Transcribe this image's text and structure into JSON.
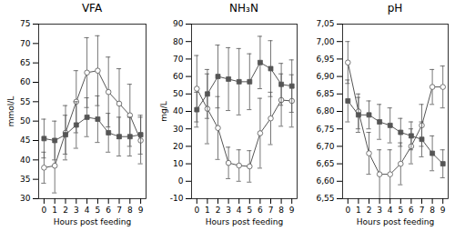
{
  "chart_data": [
    {
      "type": "line",
      "title": "VFA",
      "xlabel": "Hours post feeding",
      "ylabel": "mmol/L",
      "grid": false,
      "x": [
        0,
        1,
        2,
        3,
        4,
        5,
        6,
        7,
        8,
        9
      ],
      "xlim": [
        -0.5,
        9.5
      ],
      "xticks": [
        0,
        1,
        2,
        3,
        4,
        5,
        6,
        7,
        8,
        9
      ],
      "ylim": [
        30,
        75
      ],
      "yticks": [
        30,
        35,
        40,
        45,
        50,
        55,
        60,
        65,
        70,
        75
      ],
      "series": [
        {
          "color": "#555555",
          "marker": "circle",
          "line_style": "solid",
          "values": [
            38.0,
            38.5,
            47.0,
            55.0,
            62.5,
            63.0,
            57.5,
            54.5,
            51.5,
            45.0
          ],
          "errors": [
            4.0,
            7.0,
            7.0,
            8.0,
            9.0,
            9.0,
            9.0,
            9.0,
            8.0,
            6.0
          ]
        },
        {
          "color": "#555555",
          "marker": "square",
          "line_style": "solid",
          "values": [
            45.5,
            45.0,
            46.5,
            49.0,
            51.0,
            50.5,
            47.0,
            46.0,
            46.0,
            46.5
          ],
          "errors": [
            5.0,
            5.0,
            5.0,
            6.0,
            5.0,
            6.0,
            5.0,
            5.0,
            5.0,
            5.0
          ]
        }
      ]
    },
    {
      "type": "line",
      "title": "NH₃N",
      "xlabel": "Hours post feeding",
      "ylabel": "mg/L",
      "grid": false,
      "x": [
        0,
        1,
        2,
        3,
        4,
        5,
        6,
        7,
        8,
        9
      ],
      "xlim": [
        -0.5,
        9.5
      ],
      "xticks": [
        0,
        1,
        2,
        3,
        4,
        5,
        6,
        7,
        8,
        9
      ],
      "ylim": [
        -10,
        90
      ],
      "yticks": [
        -10,
        0,
        10,
        20,
        30,
        40,
        50,
        60,
        70,
        80,
        90
      ],
      "series": [
        {
          "color": "#555555",
          "marker": "circle",
          "line_style": "solid",
          "values": [
            53.0,
            41.5,
            30.5,
            10.5,
            9.0,
            8.5,
            27.5,
            36.0,
            46.5,
            46.0
          ],
          "errors": [
            19.0,
            20.0,
            18.0,
            9.0,
            9.0,
            9.0,
            20.0,
            15.0,
            15.0,
            15.0
          ]
        },
        {
          "color": "#555555",
          "marker": "square",
          "line_style": "solid",
          "values": [
            41.0,
            50.0,
            60.0,
            58.5,
            57.0,
            57.0,
            68.0,
            64.5,
            55.5,
            54.5
          ],
          "errors": [
            10.0,
            14.0,
            18.0,
            18.0,
            19.0,
            16.0,
            15.0,
            16.0,
            12.0,
            15.0
          ]
        }
      ]
    },
    {
      "type": "line",
      "title": "pH",
      "xlabel": "Hours post feeding",
      "grid": false,
      "x": [
        0,
        1,
        2,
        3,
        4,
        5,
        6,
        7,
        8,
        9
      ],
      "xlim": [
        -0.5,
        9.5
      ],
      "xticks": [
        0,
        1,
        2,
        3,
        4,
        5,
        6,
        7,
        8,
        9
      ],
      "ylim": [
        6.55,
        7.05
      ],
      "yticks": [
        {
          "value": 6.55,
          "label": "6,55"
        },
        {
          "value": 6.6,
          "label": "6,60"
        },
        {
          "value": 6.65,
          "label": "6,65"
        },
        {
          "value": 6.7,
          "label": "6,70"
        },
        {
          "value": 6.75,
          "label": "6,75"
        },
        {
          "value": 6.8,
          "label": "6,80"
        },
        {
          "value": 6.85,
          "label": "6,85"
        },
        {
          "value": 6.9,
          "label": "6,90"
        },
        {
          "value": 6.95,
          "label": "6,95"
        },
        {
          "value": 7.0,
          "label": "7,00"
        },
        {
          "value": 7.05,
          "label": "7,05"
        }
      ],
      "series": [
        {
          "color": "#555555",
          "marker": "circle",
          "line_style": "solid",
          "values": [
            6.94,
            6.8,
            6.68,
            6.62,
            6.62,
            6.65,
            6.7,
            6.76,
            6.87,
            6.87
          ],
          "errors": [
            0.06,
            0.05,
            0.06,
            0.07,
            0.07,
            0.06,
            0.05,
            0.06,
            0.05,
            0.06
          ]
        },
        {
          "color": "#555555",
          "marker": "square",
          "line_style": "solid",
          "values": [
            6.83,
            6.79,
            6.79,
            6.77,
            6.76,
            6.74,
            6.73,
            6.72,
            6.68,
            6.65
          ],
          "errors": [
            0.06,
            0.05,
            0.04,
            0.05,
            0.05,
            0.04,
            0.04,
            0.05,
            0.05,
            0.04
          ]
        }
      ]
    }
  ]
}
